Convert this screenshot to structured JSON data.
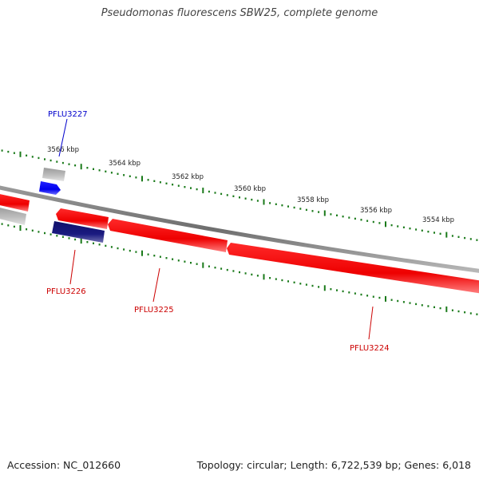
{
  "title": "Pseudomonas fluorescens SBW25, complete genome",
  "footer": {
    "accession": "Accession: NC_012660",
    "summary": "Topology: circular; Length: 6,722,539 bp; Genes: 6,018"
  },
  "scale": {
    "unit": "kbp",
    "labels": [
      "3566 kbp",
      "3564 kbp",
      "3562 kbp",
      "3560 kbp",
      "3558 kbp",
      "3556 kbp",
      "3554 kbp"
    ]
  },
  "genes": [
    {
      "id": "PFLU3227",
      "color": "#0000cc"
    },
    {
      "id": "PFLU3226",
      "color": "#cc0000"
    },
    {
      "id": "PFLU3225",
      "color": "#cc0000"
    },
    {
      "id": "PFLU3224",
      "color": "#cc0000"
    }
  ],
  "colors": {
    "forward_gene": "#0000ff",
    "reverse_gene": "#ff0000",
    "feature_dark": "#1a1a80",
    "other_feature": "#b0b0b0",
    "backbone": "#888888",
    "scale_ticks": "#1a7a1a"
  }
}
